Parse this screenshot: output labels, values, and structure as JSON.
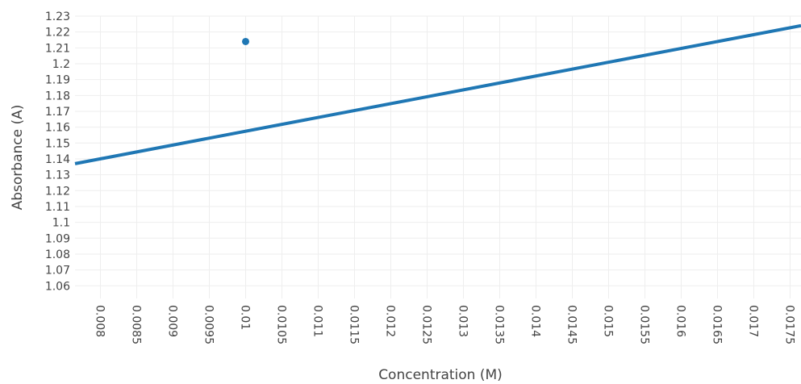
{
  "chart_data": {
    "type": "scatter",
    "title": "",
    "xlabel": "Concentration (M)",
    "ylabel": "Absorbance (A)",
    "xlim": [
      0.00765,
      0.01765
    ],
    "ylim": [
      1.052,
      1.23
    ],
    "grid": true,
    "legend": "none",
    "x_ticks": [
      "0.008",
      "0.0085",
      "0.009",
      "0.0095",
      "0.01",
      "0.0105",
      "0.011",
      "0.0115",
      "0.012",
      "0.0125",
      "0.013",
      "0.0135",
      "0.014",
      "0.0145",
      "0.015",
      "0.0155",
      "0.016",
      "0.0165",
      "0.017",
      "0.0175"
    ],
    "y_ticks": [
      "1.06",
      "1.07",
      "1.08",
      "1.09",
      "1.1",
      "1.11",
      "1.12",
      "1.13",
      "1.14",
      "1.15",
      "1.16",
      "1.17",
      "1.18",
      "1.19",
      "1.2",
      "1.21",
      "1.22",
      "1.23"
    ],
    "series": [
      {
        "mode": "markers",
        "color": "#1f77b4",
        "x": [
          0.01
        ],
        "y": [
          1.214
        ]
      },
      {
        "mode": "line",
        "color": "#1f77b4",
        "x": [
          0.00765,
          0.01765
        ],
        "y": [
          1.137,
          1.224
        ]
      }
    ]
  }
}
